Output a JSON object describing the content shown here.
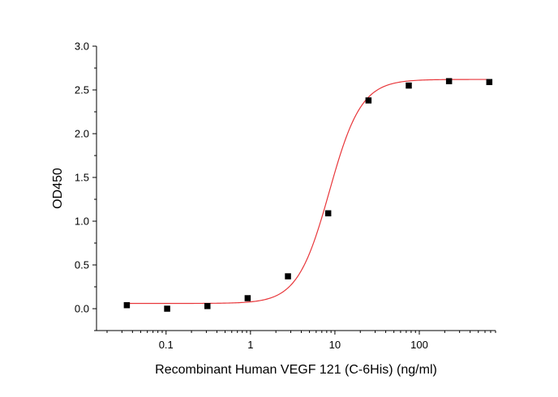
{
  "chart_data": {
    "type": "scatter",
    "title": "",
    "xlabel": "Recombinant Human VEGF 121 (C-6His) (ng/ml)",
    "ylabel": "OD450",
    "x_scale": "log",
    "xlim": [
      0.015,
      800
    ],
    "ylim": [
      -0.25,
      3.0
    ],
    "x_ticks": [
      0.1,
      1,
      10,
      100
    ],
    "x_tick_labels": [
      "0.1",
      "1",
      "10",
      "100"
    ],
    "y_ticks": [
      0.0,
      0.5,
      1.0,
      1.5,
      2.0,
      2.5,
      3.0
    ],
    "y_tick_labels": [
      "0.0",
      "0.5",
      "1.0",
      "1.5",
      "2.0",
      "2.5",
      "3.0"
    ],
    "grid": false,
    "legend": "none",
    "series": [
      {
        "type": "scatter",
        "marker": "square",
        "color": "#000000",
        "x": [
          0.0343,
          0.103,
          0.309,
          0.926,
          2.78,
          8.33,
          25,
          75,
          225,
          675
        ],
        "y": [
          0.04,
          0.0,
          0.03,
          0.12,
          0.37,
          1.09,
          2.38,
          2.55,
          2.6,
          2.59
        ]
      },
      {
        "type": "line",
        "fit": "four-parameter logistic",
        "color": "#e8363a",
        "bottom": 0.06,
        "top": 2.62,
        "ec50": 8.6,
        "hill": 2.3,
        "x_range": [
          0.0343,
          675
        ]
      }
    ]
  }
}
